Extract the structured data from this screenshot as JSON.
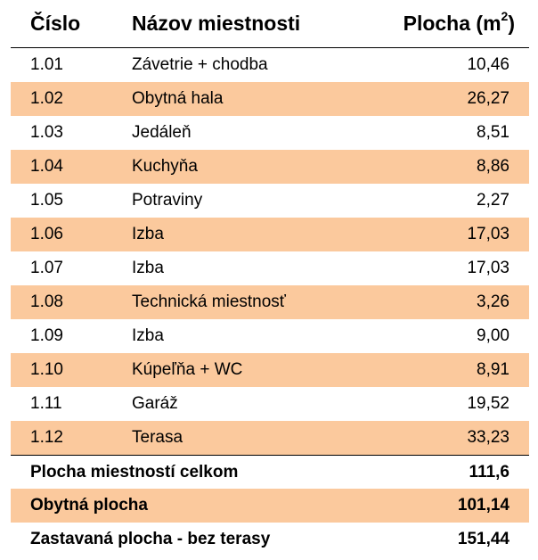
{
  "table": {
    "header": {
      "number": "Číslo",
      "name": "Názov miestnosti",
      "area_base": "Plocha (m",
      "area_sup": "2",
      "area_close": ")"
    },
    "rows": [
      {
        "number": "1.01",
        "name": "Závetrie + chodba",
        "area": "10,46"
      },
      {
        "number": "1.02",
        "name": "Obytná hala",
        "area": "26,27"
      },
      {
        "number": "1.03",
        "name": "Jedáleň",
        "area": "8,51"
      },
      {
        "number": "1.04",
        "name": "Kuchyňa",
        "area": "8,86"
      },
      {
        "number": "1.05",
        "name": "Potraviny",
        "area": "2,27"
      },
      {
        "number": "1.06",
        "name": "Izba",
        "area": "17,03"
      },
      {
        "number": "1.07",
        "name": "Izba",
        "area": "17,03"
      },
      {
        "number": "1.08",
        "name": "Technická miestnosť",
        "area": "3,26"
      },
      {
        "number": "1.09",
        "name": "Izba",
        "area": "9,00"
      },
      {
        "number": "1.10",
        "name": "Kúpeľňa + WC",
        "area": "8,91"
      },
      {
        "number": "1.11",
        "name": "Garáž",
        "area": "19,52"
      },
      {
        "number": "1.12",
        "name": "Terasa",
        "area": "33,23"
      }
    ],
    "summary": [
      {
        "label": "Plocha miestností celkom",
        "value": "111,6"
      },
      {
        "label": "Obytná plocha",
        "value": "101,14"
      },
      {
        "label": "Zastavaná plocha - bez terasy",
        "value": "151,44"
      }
    ]
  },
  "colors": {
    "shaded_row": "#fbc99d",
    "white_row": "#ffffff",
    "rule": "#000000"
  }
}
